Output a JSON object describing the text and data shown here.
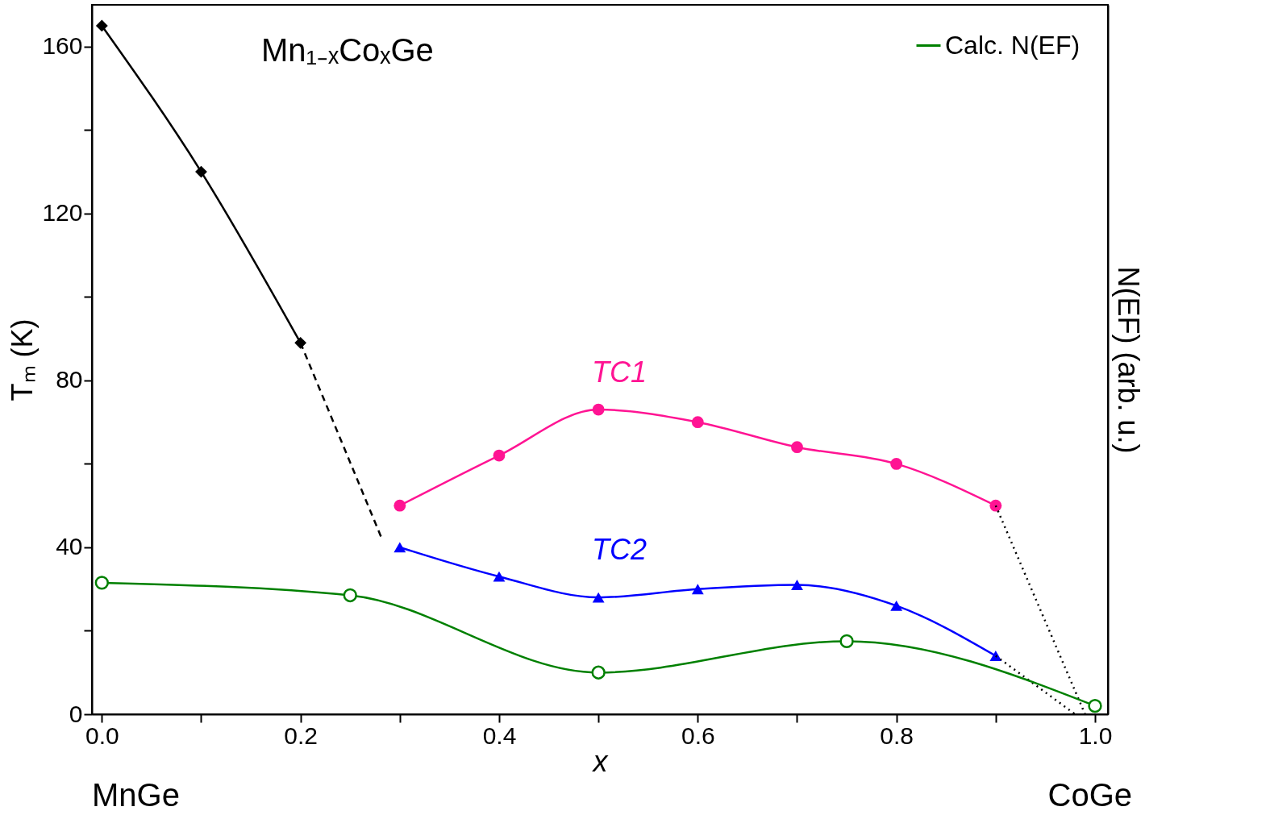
{
  "chart_data": {
    "type": "line",
    "xlabel": "x",
    "ylabel": "Tₘ (K)",
    "y2label": "N(EF)  (arb. u.)",
    "xlim": [
      -0.01,
      1.013
    ],
    "ylim": [
      0,
      170
    ],
    "xticks": [
      {
        "value": 0,
        "label": "0.0"
      },
      {
        "value": 0.1,
        "label": null
      },
      {
        "value": 0.2,
        "label": "0.2"
      },
      {
        "value": 0.3,
        "label": null
      },
      {
        "value": 0.4,
        "label": "0.4"
      },
      {
        "value": 0.5,
        "label": null
      },
      {
        "value": 0.6,
        "label": "0.6"
      },
      {
        "value": 0.7,
        "label": null
      },
      {
        "value": 0.8,
        "label": "0.8"
      },
      {
        "value": 0.9,
        "label": null
      },
      {
        "value": 1,
        "label": "1.0"
      }
    ],
    "yticks": [
      0,
      {
        "value": 20,
        "label": null
      },
      40,
      {
        "value": 60,
        "label": null
      },
      80,
      {
        "value": 100,
        "label": null
      },
      120,
      {
        "value": 140,
        "label": null
      },
      160
    ],
    "legend": "top right",
    "grid": false,
    "series": [
      {
        "color": "#000000",
        "x": [
          0,
          0.1,
          0.2
        ],
        "values": [
          165,
          130,
          89
        ],
        "marker": "diamond",
        "line_style": "solid"
      },
      {
        "color": "#000000",
        "x": [
          0.2,
          0.281
        ],
        "values": [
          89,
          42.6
        ],
        "marker": "none",
        "line_style": "dashed"
      },
      {
        "color": "#ff1493",
        "x": [
          0.3,
          0.4,
          0.5,
          0.6,
          0.7,
          0.8,
          0.9
        ],
        "values": [
          50,
          62,
          73,
          70,
          64,
          60,
          50
        ],
        "marker": "circle",
        "line_style": "solid"
      },
      {
        "color": "#000000",
        "x": [
          0.9,
          0.99
        ],
        "values": [
          50,
          0
        ],
        "marker": "none",
        "line_style": "dotted"
      },
      {
        "color": "#0000ff",
        "x": [
          0.3,
          0.4,
          0.5,
          0.6,
          0.7,
          0.8,
          0.9
        ],
        "values": [
          40,
          33,
          28,
          30,
          31,
          26,
          14
        ],
        "marker": "triangle",
        "line_style": "solid"
      },
      {
        "color": "#000000",
        "x": [
          0.9,
          0.98
        ],
        "values": [
          14,
          0
        ],
        "marker": "none",
        "line_style": "dotted"
      },
      {
        "name": "Calc. N(EF)",
        "color": "#008000",
        "x": [
          0,
          0.25,
          0.5,
          0.75,
          1.0
        ],
        "values": [
          31.5,
          28.5,
          10,
          17.5,
          2
        ],
        "marker": "circle",
        "line_style": "solid"
      }
    ],
    "annotations": [
      "Mn₁₋ₓCoₓGe",
      "TC1",
      "TC2",
      "MnGe",
      "CoGe"
    ]
  }
}
